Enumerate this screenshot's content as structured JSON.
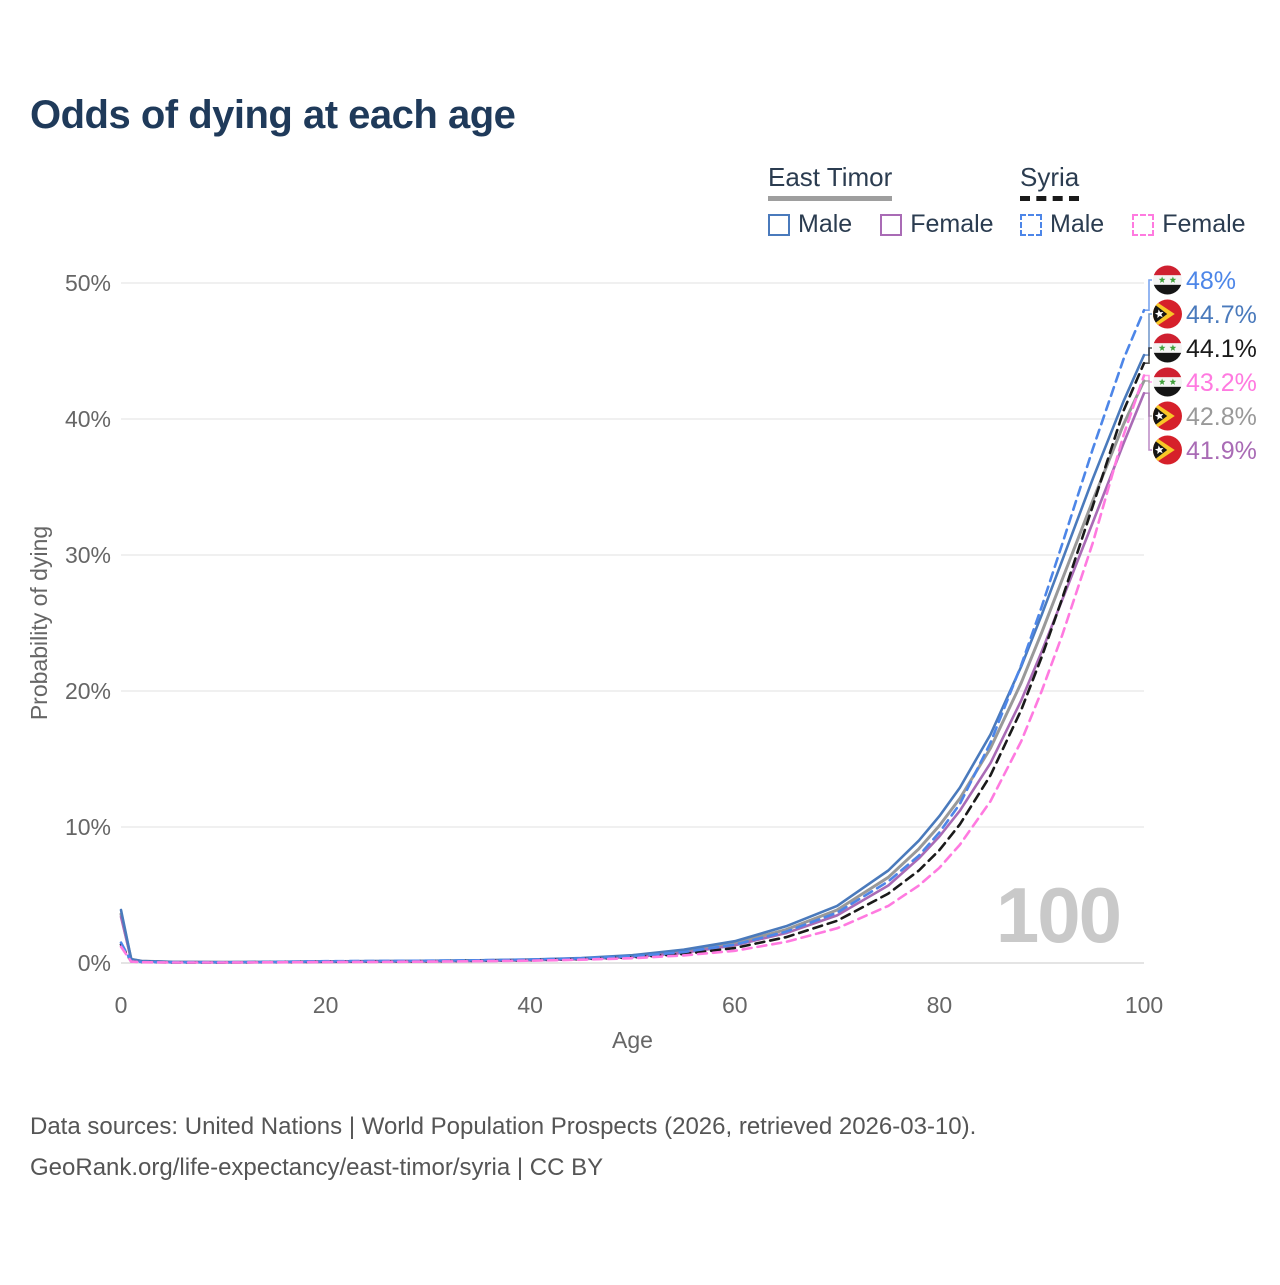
{
  "title": "Odds of dying at each age",
  "legend": {
    "groups": [
      {
        "name": "East Timor",
        "line_style": "solid",
        "line_color": "#9e9e9e",
        "items": [
          {
            "label": "Male",
            "color": "#4a7abc",
            "dashed": false
          },
          {
            "label": "Female",
            "color": "#a96bb5",
            "dashed": false
          }
        ]
      },
      {
        "name": "Syria",
        "line_style": "dashed",
        "line_color": "#1a1a1a",
        "items": [
          {
            "label": "Male",
            "color": "#4d86e8",
            "dashed": true
          },
          {
            "label": "Female",
            "color": "#ff7ae0",
            "dashed": true
          }
        ]
      }
    ]
  },
  "chart_data": {
    "type": "line",
    "title": "Odds of dying at each age",
    "xlabel": "Age",
    "ylabel": "Probability of dying",
    "xlim": [
      0,
      100
    ],
    "ylim": [
      0,
      50
    ],
    "x_ticks": [
      0,
      20,
      40,
      60,
      80,
      100
    ],
    "y_ticks": [
      0,
      10,
      20,
      30,
      40,
      50
    ],
    "y_tick_suffix": "%",
    "grid": true,
    "legend_position": "top-right",
    "watermark": "100",
    "series": [
      {
        "id": "east-timor-total",
        "country": "East Timor",
        "sex": "Both",
        "flag": "east-timor",
        "color": "#999999",
        "dashed": false,
        "width": 3,
        "end_label": "42.8%",
        "points": [
          [
            0,
            3.6
          ],
          [
            1,
            0.27
          ],
          [
            2,
            0.14
          ],
          [
            5,
            0.075
          ],
          [
            10,
            0.055
          ],
          [
            15,
            0.07
          ],
          [
            20,
            0.1
          ],
          [
            25,
            0.12
          ],
          [
            30,
            0.14
          ],
          [
            35,
            0.175
          ],
          [
            40,
            0.23
          ],
          [
            45,
            0.32
          ],
          [
            50,
            0.5
          ],
          [
            55,
            0.85
          ],
          [
            60,
            1.45
          ],
          [
            65,
            2.45
          ],
          [
            70,
            3.9
          ],
          [
            75,
            6.3
          ],
          [
            78,
            8.4
          ],
          [
            80,
            10.1
          ],
          [
            82,
            12.1
          ],
          [
            85,
            15.8
          ],
          [
            88,
            20.6
          ],
          [
            90,
            24.3
          ],
          [
            92,
            28.2
          ],
          [
            95,
            34.0
          ],
          [
            98,
            39.6
          ],
          [
            100,
            42.8
          ]
        ]
      },
      {
        "id": "east-timor-female",
        "country": "East Timor",
        "sex": "Female",
        "flag": "east-timor",
        "color": "#a96bb5",
        "dashed": false,
        "width": 2.6,
        "end_label": "41.9%",
        "points": [
          [
            0,
            3.4
          ],
          [
            1,
            0.25
          ],
          [
            2,
            0.13
          ],
          [
            5,
            0.07
          ],
          [
            10,
            0.05
          ],
          [
            15,
            0.06
          ],
          [
            20,
            0.08
          ],
          [
            25,
            0.1
          ],
          [
            30,
            0.12
          ],
          [
            35,
            0.15
          ],
          [
            40,
            0.2
          ],
          [
            45,
            0.28
          ],
          [
            50,
            0.44
          ],
          [
            55,
            0.74
          ],
          [
            60,
            1.3
          ],
          [
            65,
            2.2
          ],
          [
            70,
            3.5
          ],
          [
            75,
            5.7
          ],
          [
            78,
            7.7
          ],
          [
            80,
            9.3
          ],
          [
            82,
            11.2
          ],
          [
            85,
            14.7
          ],
          [
            88,
            19.3
          ],
          [
            90,
            22.9
          ],
          [
            92,
            26.7
          ],
          [
            95,
            32.4
          ],
          [
            98,
            38.2
          ],
          [
            100,
            41.9
          ]
        ]
      },
      {
        "id": "east-timor-male",
        "country": "East Timor",
        "sex": "Male",
        "flag": "east-timor",
        "color": "#4a7abc",
        "dashed": false,
        "width": 2.6,
        "end_label": "44.7%",
        "points": [
          [
            0,
            3.9
          ],
          [
            1,
            0.29
          ],
          [
            2,
            0.15
          ],
          [
            5,
            0.08
          ],
          [
            10,
            0.06
          ],
          [
            15,
            0.08
          ],
          [
            20,
            0.12
          ],
          [
            25,
            0.14
          ],
          [
            30,
            0.16
          ],
          [
            35,
            0.2
          ],
          [
            40,
            0.26
          ],
          [
            45,
            0.37
          ],
          [
            50,
            0.57
          ],
          [
            55,
            0.98
          ],
          [
            60,
            1.6
          ],
          [
            65,
            2.7
          ],
          [
            70,
            4.2
          ],
          [
            75,
            6.8
          ],
          [
            78,
            9.0
          ],
          [
            80,
            10.8
          ],
          [
            82,
            12.9
          ],
          [
            85,
            16.8
          ],
          [
            88,
            21.8
          ],
          [
            90,
            25.6
          ],
          [
            92,
            29.6
          ],
          [
            95,
            35.6
          ],
          [
            98,
            41.3
          ],
          [
            100,
            44.7
          ]
        ]
      },
      {
        "id": "syria-total",
        "country": "Syria",
        "sex": "Both",
        "flag": "syria",
        "color": "#1a1a1a",
        "dashed": true,
        "width": 2.6,
        "end_label": "44.1%",
        "points": [
          [
            0,
            1.35
          ],
          [
            1,
            0.11
          ],
          [
            2,
            0.07
          ],
          [
            5,
            0.045
          ],
          [
            10,
            0.045
          ],
          [
            15,
            0.065
          ],
          [
            20,
            0.1
          ],
          [
            25,
            0.115
          ],
          [
            30,
            0.135
          ],
          [
            35,
            0.165
          ],
          [
            40,
            0.21
          ],
          [
            45,
            0.285
          ],
          [
            50,
            0.41
          ],
          [
            55,
            0.66
          ],
          [
            60,
            1.1
          ],
          [
            65,
            1.9
          ],
          [
            70,
            3.1
          ],
          [
            75,
            5.1
          ],
          [
            78,
            6.8
          ],
          [
            80,
            8.3
          ],
          [
            82,
            10.2
          ],
          [
            85,
            13.8
          ],
          [
            88,
            18.6
          ],
          [
            90,
            22.5
          ],
          [
            92,
            26.8
          ],
          [
            95,
            33.6
          ],
          [
            98,
            40.6
          ],
          [
            100,
            44.1
          ]
        ]
      },
      {
        "id": "syria-male",
        "country": "Syria",
        "sex": "Male",
        "flag": "syria",
        "color": "#4d86e8",
        "dashed": true,
        "width": 2.6,
        "end_label": "48%",
        "points": [
          [
            0,
            1.5
          ],
          [
            1,
            0.12
          ],
          [
            2,
            0.08
          ],
          [
            5,
            0.05
          ],
          [
            10,
            0.05
          ],
          [
            15,
            0.08
          ],
          [
            20,
            0.13
          ],
          [
            25,
            0.15
          ],
          [
            30,
            0.17
          ],
          [
            35,
            0.2
          ],
          [
            40,
            0.25
          ],
          [
            45,
            0.34
          ],
          [
            50,
            0.49
          ],
          [
            55,
            0.8
          ],
          [
            60,
            1.35
          ],
          [
            65,
            2.3
          ],
          [
            70,
            3.7
          ],
          [
            75,
            6.0
          ],
          [
            78,
            7.9
          ],
          [
            80,
            9.6
          ],
          [
            82,
            11.7
          ],
          [
            85,
            16.2
          ],
          [
            88,
            21.9
          ],
          [
            90,
            26.2
          ],
          [
            92,
            30.8
          ],
          [
            95,
            37.8
          ],
          [
            98,
            44.4
          ],
          [
            100,
            48.0
          ]
        ]
      },
      {
        "id": "syria-female",
        "country": "Syria",
        "sex": "Female",
        "flag": "syria",
        "color": "#ff7ae0",
        "dashed": true,
        "width": 2.6,
        "end_label": "43.2%",
        "points": [
          [
            0,
            1.2
          ],
          [
            1,
            0.1
          ],
          [
            2,
            0.06
          ],
          [
            5,
            0.04
          ],
          [
            10,
            0.04
          ],
          [
            15,
            0.05
          ],
          [
            20,
            0.07
          ],
          [
            25,
            0.08
          ],
          [
            30,
            0.1
          ],
          [
            35,
            0.13
          ],
          [
            40,
            0.17
          ],
          [
            45,
            0.24
          ],
          [
            50,
            0.35
          ],
          [
            55,
            0.56
          ],
          [
            60,
            0.9
          ],
          [
            65,
            1.55
          ],
          [
            70,
            2.55
          ],
          [
            75,
            4.2
          ],
          [
            78,
            5.7
          ],
          [
            80,
            7.0
          ],
          [
            82,
            8.7
          ],
          [
            85,
            11.9
          ],
          [
            88,
            16.3
          ],
          [
            90,
            20.0
          ],
          [
            92,
            24.1
          ],
          [
            95,
            30.9
          ],
          [
            98,
            38.8
          ],
          [
            100,
            43.2
          ]
        ]
      }
    ],
    "end_labels": [
      "syria-male",
      "east-timor-male",
      "syria-total",
      "syria-female",
      "east-timor-total",
      "east-timor-female"
    ]
  },
  "footer": {
    "line1": "Data sources: United Nations | World Population Prospects (2026, retrieved 2026-03-10).",
    "line2": "GeoRank.org/life-expectancy/east-timor/syria | CC BY"
  }
}
